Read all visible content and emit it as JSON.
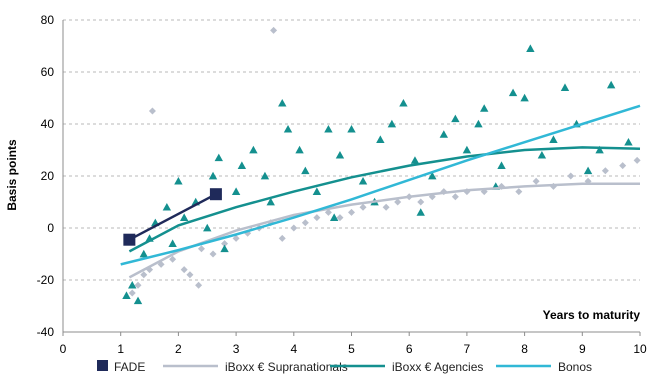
{
  "chart_data": {
    "type": "scatter",
    "title": "",
    "ylabel": "Basis points",
    "xlabel": "Years to maturity",
    "xlim": [
      0,
      10
    ],
    "ylim": [
      -40,
      80
    ],
    "x_ticks": [
      "0",
      "1",
      "2",
      "3",
      "4",
      "5",
      "6",
      "7",
      "8",
      "9",
      "10"
    ],
    "y_ticks": [
      "-40",
      "-20",
      "0",
      "20",
      "40",
      "60",
      "80"
    ],
    "grid": "horizontal dashed",
    "legend_position": "bottom",
    "series": [
      {
        "name": "FADE",
        "kind": "points+line",
        "marker": "square",
        "color": "#1f2a5a",
        "points": [
          [
            1.15,
            -4.5
          ],
          [
            2.65,
            13
          ]
        ]
      },
      {
        "name": "iBoxx € Supranationals",
        "kind": "points+trend",
        "marker": "diamond",
        "color": "#b9bfcc",
        "points": [
          [
            1.55,
            45
          ],
          [
            3.65,
            76
          ],
          [
            1.2,
            -25
          ],
          [
            1.3,
            -22
          ],
          [
            1.4,
            -18
          ],
          [
            1.5,
            -16
          ],
          [
            1.7,
            -14
          ],
          [
            1.9,
            -12
          ],
          [
            2.1,
            -16
          ],
          [
            2.2,
            -18
          ],
          [
            2.35,
            -22
          ],
          [
            2.4,
            -8
          ],
          [
            2.6,
            -10
          ],
          [
            2.8,
            -6
          ],
          [
            3.0,
            -4
          ],
          [
            3.2,
            -2
          ],
          [
            3.4,
            0
          ],
          [
            3.6,
            2
          ],
          [
            3.8,
            -4
          ],
          [
            4.0,
            0
          ],
          [
            4.2,
            2
          ],
          [
            4.4,
            4
          ],
          [
            4.6,
            6
          ],
          [
            4.8,
            4
          ],
          [
            5.0,
            6
          ],
          [
            5.2,
            8
          ],
          [
            5.4,
            10
          ],
          [
            5.6,
            8
          ],
          [
            5.8,
            10
          ],
          [
            6.0,
            12
          ],
          [
            6.2,
            10
          ],
          [
            6.4,
            12
          ],
          [
            6.6,
            14
          ],
          [
            6.8,
            12
          ],
          [
            7.0,
            14
          ],
          [
            7.3,
            14
          ],
          [
            7.6,
            16
          ],
          [
            7.9,
            14
          ],
          [
            8.2,
            18
          ],
          [
            8.5,
            16
          ],
          [
            8.8,
            20
          ],
          [
            9.1,
            18
          ],
          [
            9.4,
            22
          ],
          [
            9.7,
            24
          ],
          [
            9.95,
            26
          ]
        ],
        "trend": [
          [
            1.15,
            -19
          ],
          [
            2,
            -9
          ],
          [
            3,
            -1
          ],
          [
            4,
            5
          ],
          [
            5,
            9
          ],
          [
            6,
            12
          ],
          [
            7,
            14.5
          ],
          [
            8,
            16
          ],
          [
            9,
            17
          ],
          [
            10,
            17
          ]
        ]
      },
      {
        "name": "iBoxx € Agencies",
        "kind": "points+trend",
        "marker": "triangle",
        "color": "#14908f",
        "points": [
          [
            1.1,
            -26
          ],
          [
            1.2,
            -22
          ],
          [
            1.3,
            -28
          ],
          [
            1.4,
            -10
          ],
          [
            1.5,
            -4
          ],
          [
            1.6,
            2
          ],
          [
            1.8,
            8
          ],
          [
            1.9,
            -6
          ],
          [
            2.0,
            18
          ],
          [
            2.1,
            4
          ],
          [
            2.3,
            10
          ],
          [
            2.5,
            0
          ],
          [
            2.6,
            20
          ],
          [
            2.7,
            27
          ],
          [
            2.8,
            -8
          ],
          [
            3.0,
            14
          ],
          [
            3.1,
            24
          ],
          [
            3.3,
            30
          ],
          [
            3.5,
            20
          ],
          [
            3.6,
            10
          ],
          [
            3.8,
            48
          ],
          [
            3.9,
            38
          ],
          [
            4.1,
            30
          ],
          [
            4.2,
            22
          ],
          [
            4.4,
            14
          ],
          [
            4.6,
            38
          ],
          [
            4.7,
            4
          ],
          [
            4.8,
            28
          ],
          [
            5.0,
            38
          ],
          [
            5.2,
            18
          ],
          [
            5.4,
            10
          ],
          [
            5.5,
            34
          ],
          [
            5.7,
            40
          ],
          [
            5.9,
            48
          ],
          [
            6.1,
            26
          ],
          [
            6.2,
            6
          ],
          [
            6.4,
            20
          ],
          [
            6.6,
            36
          ],
          [
            6.8,
            42
          ],
          [
            7.0,
            30
          ],
          [
            7.2,
            40
          ],
          [
            7.3,
            46
          ],
          [
            7.5,
            16
          ],
          [
            7.6,
            24
          ],
          [
            7.8,
            52
          ],
          [
            8.0,
            50
          ],
          [
            8.1,
            69
          ],
          [
            8.3,
            28
          ],
          [
            8.5,
            34
          ],
          [
            8.7,
            54
          ],
          [
            8.9,
            40
          ],
          [
            9.1,
            22
          ],
          [
            9.3,
            30
          ],
          [
            9.5,
            55
          ],
          [
            9.8,
            33
          ]
        ],
        "trend": [
          [
            1.15,
            -9
          ],
          [
            2,
            1
          ],
          [
            3,
            8
          ],
          [
            4,
            14
          ],
          [
            5,
            19.5
          ],
          [
            6,
            24
          ],
          [
            7,
            27.5
          ],
          [
            8,
            30
          ],
          [
            9,
            31
          ],
          [
            10,
            30.5
          ]
        ]
      },
      {
        "name": "Bonos",
        "kind": "trend",
        "marker": "none",
        "color": "#31b8d6",
        "points": [],
        "trend": [
          [
            1.0,
            -14
          ],
          [
            2,
            -8.5
          ],
          [
            3,
            -2.5
          ],
          [
            4,
            4
          ],
          [
            5,
            11
          ],
          [
            6,
            18.5
          ],
          [
            7,
            26
          ],
          [
            8,
            33
          ],
          [
            9,
            40
          ],
          [
            10,
            47
          ]
        ]
      }
    ]
  }
}
